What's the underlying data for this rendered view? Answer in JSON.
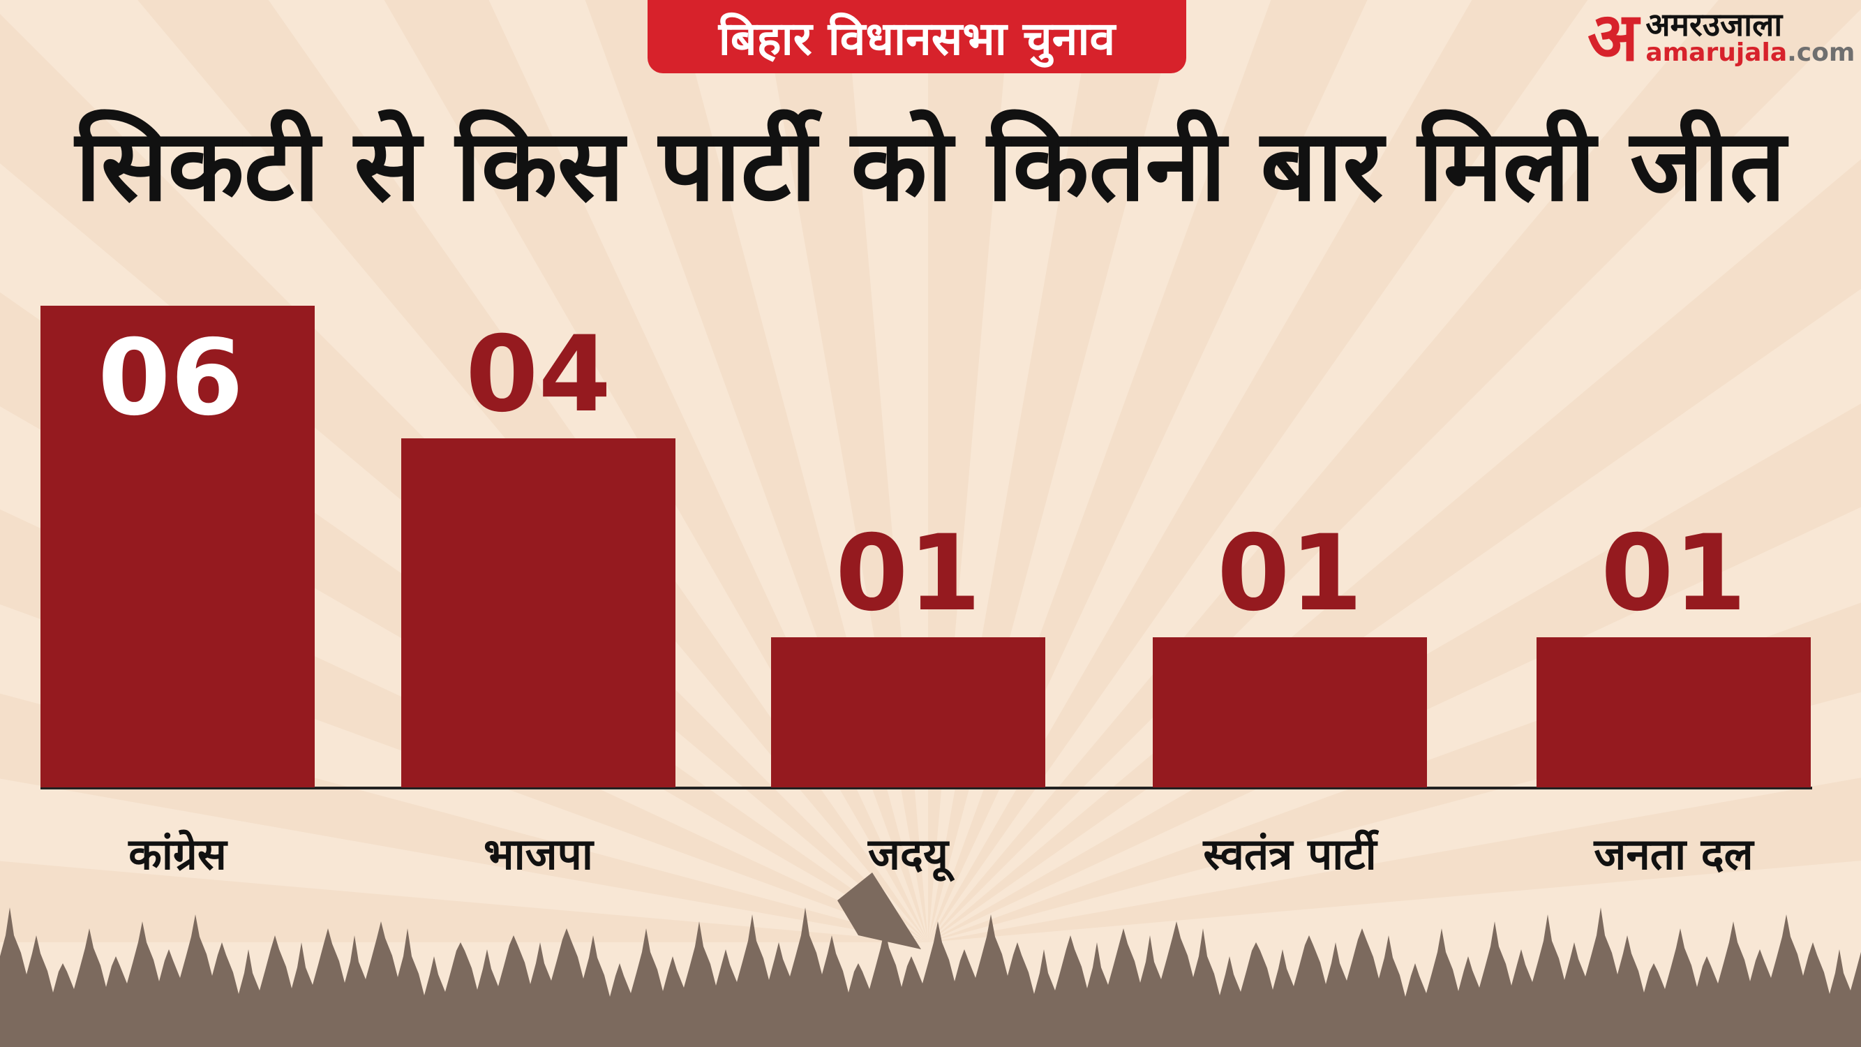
{
  "header": {
    "badge": "बिहार विधानसभा चुनाव",
    "logo_mark": "अ",
    "logo_hindi": "अमरउजाला",
    "logo_domain": "amarujala",
    "logo_tld": ".com"
  },
  "chart_data": {
    "type": "bar",
    "title": "सिकटी से किस पार्टी को कितनी बार मिली जीत",
    "categories": [
      "कांग्रेस",
      "भाजपा",
      "जदयू",
      "स्वतंत्र पार्टी",
      "जनता दल"
    ],
    "values": [
      6,
      4,
      1,
      1,
      1
    ],
    "value_labels": [
      "06",
      "04",
      "01",
      "01",
      "01"
    ],
    "xlabel": "",
    "ylabel": "",
    "grid": false,
    "colors": {
      "bar": "#951a1f",
      "label_inside": "#ffffff",
      "label_outside": "#951a1f",
      "accent": "#d7222b",
      "background": "#f8e7d5"
    }
  }
}
